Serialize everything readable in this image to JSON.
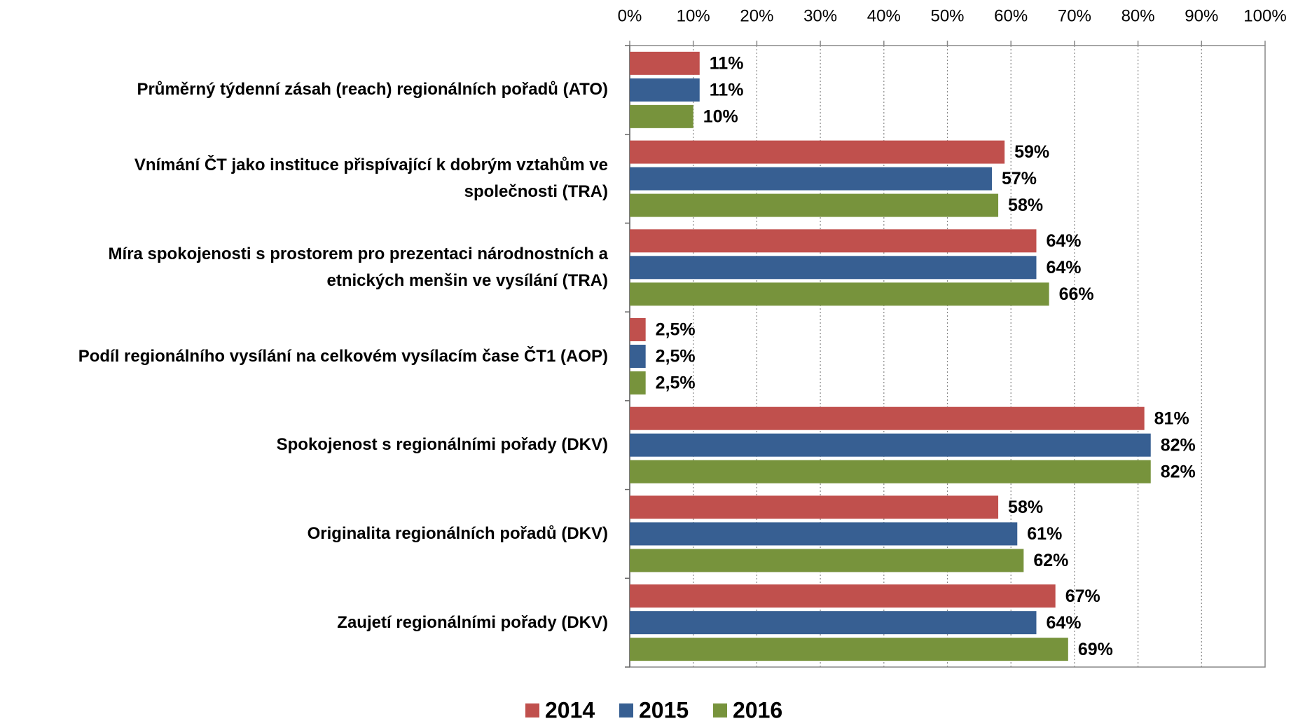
{
  "chart_data": {
    "type": "barh",
    "categories": [
      "Průměrný týdenní zásah (reach) regionálních pořadů (ATO)",
      "Vnímání ČT jako instituce přispívající k dobrým vztahům ve\nspolečnosti (TRA)",
      "Míra spokojenosti s prostorem pro prezentaci národnostních a\netnických menšin ve vysílání (TRA)",
      "Podíl regionálního vysílání na celkovém vysílacím čase ČT1 (AOP)",
      "Spokojenost s regionálními pořady (DKV)",
      "Originalita regionálních pořadů (DKV)",
      "Zaujetí regionálními pořady (DKV)"
    ],
    "series": [
      {
        "name": "2014",
        "color": "#c0504d",
        "values": [
          11,
          59,
          64,
          2.5,
          81,
          58,
          67
        ],
        "value_labels": [
          "11%",
          "59%",
          "64%",
          "2,5%",
          "81%",
          "58%",
          "67%"
        ]
      },
      {
        "name": "2015",
        "color": "#375f92",
        "values": [
          11,
          57,
          64,
          2.5,
          82,
          61,
          64
        ],
        "value_labels": [
          "11%",
          "57%",
          "64%",
          "2,5%",
          "82%",
          "61%",
          "64%"
        ]
      },
      {
        "name": "2016",
        "color": "#77933c",
        "values": [
          10,
          58,
          66,
          2.5,
          82,
          62,
          69
        ],
        "value_labels": [
          "10%",
          "58%",
          "66%",
          "2,5%",
          "82%",
          "62%",
          "69%"
        ]
      }
    ],
    "xlim": [
      0,
      100
    ],
    "xticks": [
      {
        "value": 0,
        "label": "0%"
      },
      {
        "value": 10,
        "label": "10%"
      },
      {
        "value": 20,
        "label": "20%"
      },
      {
        "value": 30,
        "label": "30%"
      },
      {
        "value": 40,
        "label": "40%"
      },
      {
        "value": 50,
        "label": "50%"
      },
      {
        "value": 60,
        "label": "60%"
      },
      {
        "value": 70,
        "label": "70%"
      },
      {
        "value": 80,
        "label": "80%"
      },
      {
        "value": 90,
        "label": "90%"
      },
      {
        "value": 100,
        "label": "100%"
      }
    ],
    "grid": true,
    "legend": "bottom"
  }
}
